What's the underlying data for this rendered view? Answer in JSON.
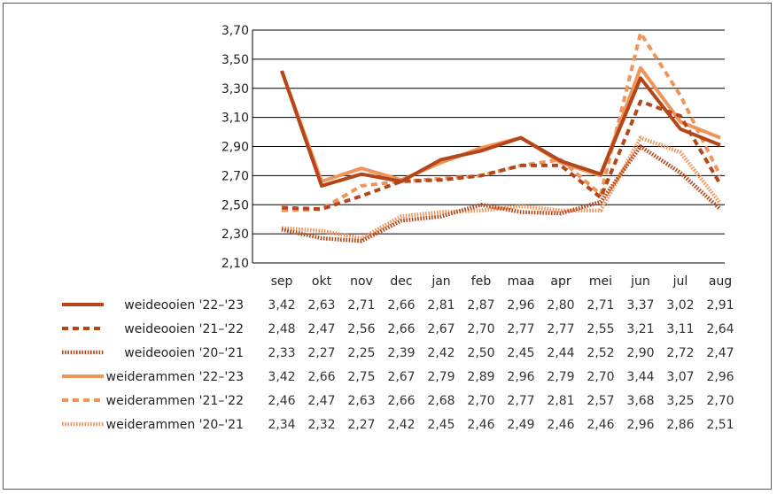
{
  "chart_data": {
    "type": "line",
    "title": "",
    "xlabel": "",
    "ylabel": "",
    "ylim": [
      2.1,
      3.7
    ],
    "yticks": [
      "2,10",
      "2,30",
      "2,50",
      "2,70",
      "2,90",
      "3,10",
      "3,30",
      "3,50",
      "3,70"
    ],
    "grid": true,
    "legend": "table-below",
    "categories": [
      "sep",
      "okt",
      "nov",
      "dec",
      "jan",
      "feb",
      "maa",
      "apr",
      "mei",
      "jun",
      "jul",
      "aug"
    ],
    "series": [
      {
        "name": "weideooien '22–'23",
        "color": "#b5461b",
        "dash": "solid",
        "values": [
          3.42,
          2.63,
          2.71,
          2.66,
          2.81,
          2.87,
          2.96,
          2.8,
          2.71,
          3.37,
          3.02,
          2.91
        ],
        "labels": [
          "3,42",
          "2,63",
          "2,71",
          "2,66",
          "2,81",
          "2,87",
          "2,96",
          "2,80",
          "2,71",
          "3,37",
          "3,02",
          "2,91"
        ]
      },
      {
        "name": "weideooien '21–'22",
        "color": "#b5461b",
        "dash": "dashed",
        "values": [
          2.48,
          2.47,
          2.56,
          2.66,
          2.67,
          2.7,
          2.77,
          2.77,
          2.55,
          3.21,
          3.11,
          2.64
        ],
        "labels": [
          "2,48",
          "2,47",
          "2,56",
          "2,66",
          "2,67",
          "2,70",
          "2,77",
          "2,77",
          "2,55",
          "3,21",
          "3,11",
          "2,64"
        ]
      },
      {
        "name": "weideooien '20–'21",
        "color": "#b5461b",
        "dash": "dotted",
        "values": [
          2.33,
          2.27,
          2.25,
          2.39,
          2.42,
          2.5,
          2.45,
          2.44,
          2.52,
          2.9,
          2.72,
          2.47
        ],
        "labels": [
          "2,33",
          "2,27",
          "2,25",
          "2,39",
          "2,42",
          "2,50",
          "2,45",
          "2,44",
          "2,52",
          "2,90",
          "2,72",
          "2,47"
        ]
      },
      {
        "name": "weiderammen '22–'23",
        "color": "#f0955a",
        "dash": "solid",
        "values": [
          3.42,
          2.66,
          2.75,
          2.67,
          2.79,
          2.89,
          2.96,
          2.79,
          2.7,
          3.44,
          3.07,
          2.96
        ],
        "labels": [
          "3,42",
          "2,66",
          "2,75",
          "2,67",
          "2,79",
          "2,89",
          "2,96",
          "2,79",
          "2,70",
          "3,44",
          "3,07",
          "2,96"
        ]
      },
      {
        "name": "weiderammen '21–'22",
        "color": "#f0955a",
        "dash": "dashed",
        "values": [
          2.46,
          2.47,
          2.63,
          2.66,
          2.68,
          2.7,
          2.77,
          2.81,
          2.57,
          3.68,
          3.25,
          2.7
        ],
        "labels": [
          "2,46",
          "2,47",
          "2,63",
          "2,66",
          "2,68",
          "2,70",
          "2,77",
          "2,81",
          "2,57",
          "3,68",
          "3,25",
          "2,70"
        ]
      },
      {
        "name": "weiderammen '20–'21",
        "color": "#f0955a",
        "dash": "dotted",
        "values": [
          2.34,
          2.32,
          2.27,
          2.42,
          2.45,
          2.46,
          2.49,
          2.46,
          2.46,
          2.96,
          2.86,
          2.51
        ],
        "labels": [
          "2,34",
          "2,32",
          "2,27",
          "2,42",
          "2,45",
          "2,46",
          "2,49",
          "2,46",
          "2,46",
          "2,96",
          "2,86",
          "2,51"
        ]
      }
    ]
  }
}
